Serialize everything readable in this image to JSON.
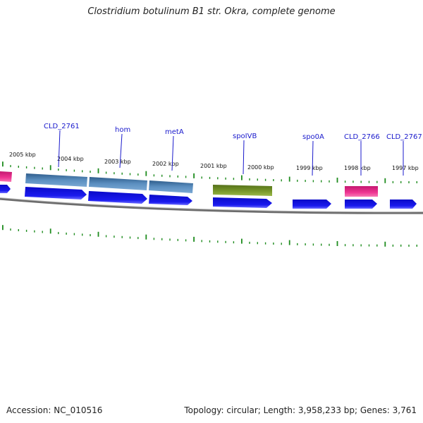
{
  "title": "Clostridium botulinum B1 str. Okra, complete genome",
  "footer": {
    "accession": "Accession: NC_010516",
    "stats": "Topology: circular; Length: 3,958,233 bp; Genes: 3,761"
  },
  "ticks": [
    {
      "label": "2005 kbp",
      "kbp": 2005
    },
    {
      "label": "2004 kbp",
      "kbp": 2004
    },
    {
      "label": "2003 kbp",
      "kbp": 2003
    },
    {
      "label": "2002 kbp",
      "kbp": 2002
    },
    {
      "label": "2001 kbp",
      "kbp": 2001
    },
    {
      "label": "2000 kbp",
      "kbp": 2000
    },
    {
      "label": "1999 kbp",
      "kbp": 1999
    },
    {
      "label": "1998 kbp",
      "kbp": 1998
    },
    {
      "label": "1997 kbp",
      "kbp": 1997
    }
  ],
  "gene_labels": [
    {
      "label": "CLD_2761"
    },
    {
      "label": "hom"
    },
    {
      "label": "metA"
    },
    {
      "label": "spoIVB"
    },
    {
      "label": "spo0A"
    },
    {
      "label": "CLD_2766"
    },
    {
      "label": "CLD_2767"
    }
  ],
  "colors": {
    "cds": "#1414e6",
    "feature_blue": "#4a7fb0",
    "feature_olive": "#6f8a24",
    "feature_pink": "#e8288a",
    "backbone": "#777777",
    "tick_green": "#1e8c1e",
    "label_line": "#1a1acc"
  }
}
